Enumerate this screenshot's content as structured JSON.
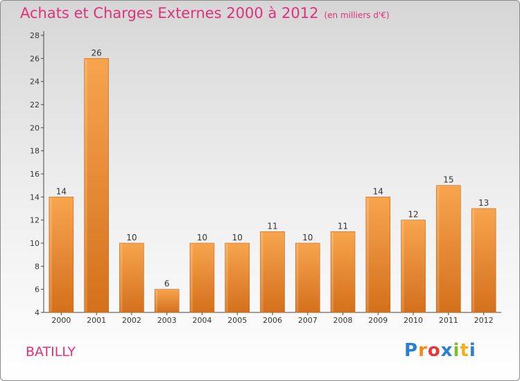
{
  "header": {
    "title": "Achats et Charges Externes 2000 à 2012",
    "subtitle": "(en milliers d'€)"
  },
  "footer": {
    "town": "BATILLY",
    "logo_text": "Proxiti"
  },
  "colors": {
    "bar_light": "#f7a54d",
    "bar_dark": "#d4701c",
    "title": "#e0317a"
  },
  "chart_data": {
    "type": "bar",
    "title": "Achats et Charges Externes 2000 à 2012",
    "subtitle": "(en milliers d'€)",
    "categories": [
      "2000",
      "2001",
      "2002",
      "2003",
      "2004",
      "2005",
      "2006",
      "2007",
      "2008",
      "2009",
      "2010",
      "2011",
      "2012"
    ],
    "values": [
      14,
      26,
      10,
      6,
      10,
      10,
      11,
      10,
      11,
      14,
      12,
      15,
      13
    ],
    "ylim": [
      4,
      28
    ],
    "yticks": [
      4,
      6,
      8,
      10,
      12,
      14,
      16,
      18,
      20,
      22,
      24,
      26,
      28
    ],
    "grid": false,
    "xlabel": "",
    "ylabel": ""
  }
}
